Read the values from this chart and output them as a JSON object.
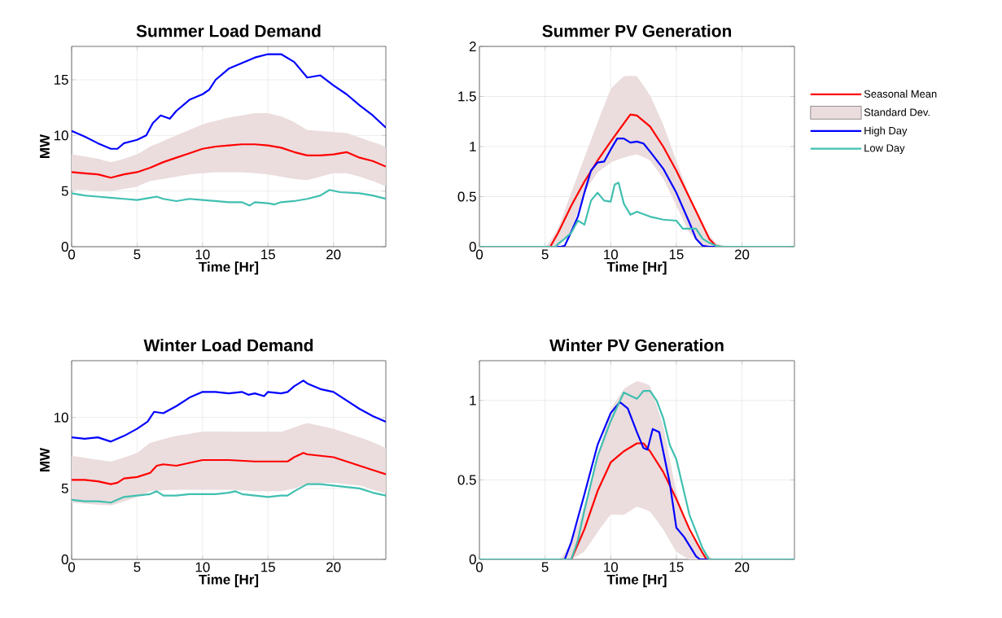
{
  "chart_data": [
    {
      "type": "line",
      "title": "Summer Load Demand",
      "xlabel": "Time [Hr]",
      "ylabel": "MW",
      "xlim": [
        0,
        24
      ],
      "ylim": [
        0,
        18
      ],
      "xticks": [
        0,
        5,
        10,
        15,
        20
      ],
      "yticks": [
        0,
        5,
        10,
        15
      ],
      "grid": true,
      "line_style": "solid",
      "marker": "none",
      "series": [
        {
          "color": "#ff0000",
          "x": [
            0,
            1,
            2,
            3,
            4,
            5,
            6,
            7,
            8,
            9,
            10,
            11,
            12,
            13,
            14,
            15,
            16,
            17,
            18,
            19,
            20,
            21,
            22,
            23,
            24
          ],
          "values": [
            6.7,
            6.6,
            6.5,
            6.2,
            6.5,
            6.7,
            7.1,
            7.6,
            8.0,
            8.4,
            8.8,
            9.0,
            9.1,
            9.2,
            9.2,
            9.1,
            8.9,
            8.5,
            8.2,
            8.2,
            8.3,
            8.5,
            8.0,
            7.7,
            7.2
          ]
        },
        {
          "type": "area",
          "color": "#ebdcdd",
          "x": [
            0,
            1,
            2,
            3,
            4,
            5,
            6,
            7,
            8,
            9,
            10,
            11,
            12,
            13,
            14,
            15,
            16,
            17,
            18,
            19,
            20,
            21,
            22,
            23,
            24
          ],
          "values": [
            null,
            null,
            null,
            null,
            null,
            null,
            null,
            null,
            null,
            null,
            null,
            null,
            null,
            null,
            null,
            null,
            null,
            null,
            null,
            null,
            null,
            null,
            null,
            null,
            null
          ],
          "upper": [
            8.3,
            8.1,
            7.9,
            7.6,
            7.9,
            8.3,
            9.0,
            9.5,
            10.0,
            10.5,
            11.0,
            11.3,
            11.6,
            11.8,
            12.0,
            12.0,
            11.7,
            11.2,
            10.5,
            10.4,
            10.3,
            10.2,
            9.8,
            9.4,
            8.9
          ],
          "lower": [
            5.1,
            5.1,
            5.0,
            5.0,
            5.2,
            5.4,
            5.9,
            6.1,
            6.3,
            6.5,
            6.6,
            6.7,
            6.7,
            6.7,
            6.6,
            6.5,
            6.3,
            6.1,
            6.0,
            6.3,
            6.6,
            6.6,
            6.3,
            5.9,
            5.5
          ]
        },
        {
          "color": "#0000ff",
          "x": [
            0,
            1,
            2,
            3,
            3.5,
            4,
            5,
            5.7,
            6.2,
            6.8,
            7.5,
            8,
            9,
            10,
            10.5,
            11,
            12,
            13,
            14,
            15,
            16,
            17,
            18,
            19,
            20,
            21,
            22,
            23,
            24
          ],
          "values": [
            10.4,
            9.9,
            9.3,
            8.8,
            8.8,
            9.3,
            9.6,
            10.0,
            11.1,
            11.8,
            11.5,
            12.2,
            13.2,
            13.7,
            14.1,
            15.0,
            16.0,
            16.5,
            17.0,
            17.3,
            17.3,
            16.6,
            15.2,
            15.4,
            14.5,
            13.7,
            12.7,
            11.8,
            10.7
          ]
        },
        {
          "color": "#40bfb0",
          "x": [
            0,
            1,
            2,
            3,
            4,
            5,
            6,
            6.5,
            7,
            8,
            9,
            10,
            11,
            12,
            13,
            13.6,
            14,
            15,
            15.5,
            16,
            17,
            18,
            19,
            19.7,
            20.5,
            22,
            23,
            24
          ],
          "values": [
            4.8,
            4.6,
            4.5,
            4.4,
            4.3,
            4.2,
            4.4,
            4.5,
            4.3,
            4.1,
            4.3,
            4.2,
            4.1,
            4.0,
            4.0,
            3.7,
            4.0,
            3.9,
            3.8,
            4.0,
            4.1,
            4.3,
            4.6,
            5.1,
            4.9,
            4.8,
            4.6,
            4.3
          ]
        }
      ]
    },
    {
      "type": "line",
      "title": "Summer PV Generation",
      "xlabel": "Time [Hr]",
      "xlim": [
        0,
        24
      ],
      "ylim": [
        0,
        2
      ],
      "xticks": [
        0,
        5,
        10,
        15,
        20
      ],
      "yticks": [
        0,
        0.5,
        1,
        1.5,
        2
      ],
      "grid": true,
      "line_style": "solid",
      "marker": "none",
      "legend": "right",
      "series": [
        {
          "name": "Seasonal Mean",
          "color": "#ff0000",
          "x": [
            0,
            5.4,
            6,
            7,
            8,
            9,
            10,
            11,
            11.5,
            12,
            13,
            14,
            15,
            16,
            17,
            17.5,
            18,
            18.3,
            24
          ],
          "values": [
            0,
            0,
            0.14,
            0.41,
            0.65,
            0.86,
            1.05,
            1.23,
            1.32,
            1.31,
            1.2,
            1.0,
            0.76,
            0.49,
            0.22,
            0.08,
            0.01,
            0,
            0
          ]
        },
        {
          "name": "Standard Dev.",
          "type": "area",
          "color": "#ebdcdd",
          "x": [
            0,
            5,
            6,
            7,
            8,
            9,
            10,
            11,
            12,
            13,
            14,
            15,
            16,
            17,
            18,
            19,
            24
          ],
          "values": [
            null,
            null,
            null,
            null,
            null,
            null,
            null,
            null,
            null,
            null,
            null,
            null,
            null,
            null,
            null,
            null,
            null
          ],
          "upper": [
            0,
            0,
            0.19,
            0.54,
            0.89,
            1.24,
            1.57,
            1.7,
            1.7,
            1.51,
            1.22,
            0.86,
            0.51,
            0.22,
            0.04,
            0,
            0
          ],
          "lower": [
            0,
            0,
            0,
            0.16,
            0.54,
            0.74,
            0.84,
            0.89,
            0.92,
            0.86,
            0.68,
            0.41,
            0.14,
            0,
            0,
            0,
            0
          ]
        },
        {
          "name": "High Day",
          "color": "#0000ff",
          "x": [
            0,
            6.2,
            6.5,
            7,
            7.5,
            8,
            8.5,
            9,
            9.5,
            10,
            10.5,
            11,
            11.5,
            12,
            12.5,
            13,
            14,
            15,
            16,
            16.5,
            17,
            17.5,
            24
          ],
          "values": [
            0,
            0,
            0.01,
            0.15,
            0.3,
            0.54,
            0.76,
            0.84,
            0.85,
            0.97,
            1.08,
            1.08,
            1.04,
            1.05,
            1.03,
            0.95,
            0.78,
            0.54,
            0.24,
            0.08,
            0.01,
            0,
            0
          ]
        },
        {
          "name": "Low Day",
          "color": "#40bfb0",
          "x": [
            0,
            5.8,
            6,
            6.5,
            7,
            7.5,
            8,
            8.5,
            9,
            9.5,
            10,
            10.3,
            10.6,
            11,
            11.5,
            12,
            13,
            14,
            15,
            15.5,
            16,
            16.5,
            17,
            17.5,
            18,
            18.5,
            24
          ],
          "values": [
            0,
            0,
            0.03,
            0.08,
            0.14,
            0.26,
            0.22,
            0.46,
            0.54,
            0.46,
            0.45,
            0.62,
            0.64,
            0.43,
            0.32,
            0.35,
            0.3,
            0.27,
            0.26,
            0.18,
            0.18,
            0.18,
            0.08,
            0.04,
            0.01,
            0,
            0
          ]
        }
      ]
    },
    {
      "type": "line",
      "title": "Winter Load Demand",
      "xlabel": "Time [Hr]",
      "ylabel": "MW",
      "xlim": [
        0,
        24
      ],
      "ylim": [
        0,
        14
      ],
      "xticks": [
        0,
        5,
        10,
        15,
        20
      ],
      "yticks": [
        0,
        5,
        10
      ],
      "grid": true,
      "line_style": "solid",
      "marker": "none",
      "series": [
        {
          "color": "#ff0000",
          "x": [
            0,
            1,
            2,
            3,
            3.5,
            4,
            5,
            6,
            6.5,
            7,
            8,
            9,
            10,
            12,
            14,
            15,
            16.5,
            17,
            17.7,
            18,
            20,
            21,
            22,
            23,
            24
          ],
          "values": [
            5.6,
            5.6,
            5.5,
            5.3,
            5.4,
            5.7,
            5.8,
            6.1,
            6.6,
            6.7,
            6.6,
            6.8,
            7.0,
            7.0,
            6.9,
            6.9,
            6.9,
            7.2,
            7.5,
            7.4,
            7.2,
            6.9,
            6.6,
            6.3,
            6.0
          ]
        },
        {
          "type": "area",
          "color": "#ebdcdd",
          "x": [
            0,
            3,
            5,
            6,
            8,
            10,
            12,
            14,
            16,
            17,
            18,
            20,
            22,
            24
          ],
          "values": [
            null,
            null,
            null,
            null,
            null,
            null,
            null,
            null,
            null,
            null,
            null,
            null,
            null,
            null
          ],
          "upper": [
            7.3,
            6.9,
            7.5,
            8.2,
            8.7,
            9.0,
            9.0,
            9.0,
            9.0,
            9.3,
            9.6,
            9.2,
            8.6,
            7.8
          ],
          "lower": [
            4.0,
            3.8,
            4.4,
            4.8,
            4.9,
            4.9,
            4.9,
            4.8,
            4.8,
            5.0,
            5.3,
            5.4,
            5.2,
            4.7
          ]
        },
        {
          "color": "#0000ff",
          "x": [
            0,
            1,
            2,
            3,
            4,
            5,
            5.8,
            6.3,
            7,
            8,
            9,
            10,
            11,
            12,
            13,
            13.5,
            14,
            14.7,
            15,
            16,
            16.5,
            17,
            17.7,
            18,
            19,
            20,
            21,
            22,
            23,
            24
          ],
          "values": [
            8.6,
            8.5,
            8.6,
            8.3,
            8.7,
            9.2,
            9.7,
            10.4,
            10.3,
            10.8,
            11.4,
            11.8,
            11.8,
            11.7,
            11.8,
            11.6,
            11.7,
            11.5,
            11.8,
            11.7,
            11.8,
            12.2,
            12.6,
            12.4,
            12.0,
            11.8,
            11.2,
            10.6,
            10.1,
            9.7
          ]
        },
        {
          "color": "#40bfb0",
          "x": [
            0,
            1,
            2,
            3,
            4,
            5,
            6,
            6.5,
            7,
            8,
            9,
            10,
            11,
            12,
            12.5,
            13,
            14,
            15,
            16,
            16.5,
            17,
            18,
            19,
            20,
            21,
            22,
            23,
            24
          ],
          "values": [
            4.2,
            4.1,
            4.1,
            4.0,
            4.4,
            4.5,
            4.6,
            4.8,
            4.5,
            4.5,
            4.6,
            4.6,
            4.6,
            4.7,
            4.8,
            4.6,
            4.5,
            4.4,
            4.5,
            4.5,
            4.8,
            5.3,
            5.3,
            5.2,
            5.1,
            5.0,
            4.7,
            4.5
          ]
        }
      ]
    },
    {
      "type": "line",
      "title": "Winter PV Generation",
      "xlabel": "Time [Hr]",
      "xlim": [
        0,
        24
      ],
      "ylim": [
        0,
        1.25
      ],
      "xticks": [
        0,
        5,
        10,
        15,
        20
      ],
      "yticks": [
        0,
        0.5,
        1
      ],
      "grid": true,
      "line_style": "solid",
      "marker": "none",
      "series": [
        {
          "color": "#ff0000",
          "x": [
            0,
            7,
            8,
            9,
            10,
            11,
            12,
            12.5,
            13,
            14,
            15,
            16,
            17,
            17.3,
            24
          ],
          "values": [
            0,
            0,
            0.19,
            0.43,
            0.61,
            0.68,
            0.73,
            0.73,
            0.68,
            0.55,
            0.38,
            0.19,
            0.04,
            0,
            0
          ]
        },
        {
          "type": "area",
          "color": "#ebdcdd",
          "x": [
            0,
            6,
            7,
            8,
            9,
            10,
            11,
            12,
            13,
            14,
            15,
            16,
            17,
            18,
            24
          ],
          "values": [
            null,
            null,
            null,
            null,
            null,
            null,
            null,
            null,
            null,
            null,
            null,
            null,
            null,
            null,
            null
          ],
          "upper": [
            0,
            0,
            0.11,
            0.34,
            0.65,
            0.94,
            1.07,
            1.12,
            1.09,
            0.84,
            0.43,
            0.17,
            0.05,
            0,
            0
          ],
          "lower": [
            0,
            0,
            0,
            0.05,
            0.17,
            0.28,
            0.28,
            0.33,
            0.3,
            0.19,
            0.05,
            0,
            0,
            0,
            0
          ]
        },
        {
          "color": "#0000ff",
          "x": [
            0,
            6.5,
            7,
            8,
            9,
            10,
            10.7,
            11.3,
            12,
            12.5,
            12.8,
            13.2,
            13.7,
            14.5,
            15,
            15.6,
            16.5,
            16.8,
            24
          ],
          "values": [
            0,
            0,
            0.11,
            0.41,
            0.72,
            0.92,
            0.99,
            0.95,
            0.8,
            0.7,
            0.69,
            0.82,
            0.8,
            0.48,
            0.2,
            0.14,
            0.02,
            0,
            0
          ]
        },
        {
          "color": "#40bfb0",
          "x": [
            0,
            7,
            7.5,
            8,
            9,
            10,
            11,
            11.5,
            12,
            12.5,
            13,
            13.5,
            14,
            14.5,
            15,
            16,
            17,
            17.5,
            24
          ],
          "values": [
            0,
            0,
            0.12,
            0.31,
            0.65,
            0.87,
            1.05,
            1.03,
            1.01,
            1.06,
            1.06,
            1.0,
            0.89,
            0.72,
            0.63,
            0.28,
            0.07,
            0,
            0
          ]
        }
      ]
    }
  ]
}
